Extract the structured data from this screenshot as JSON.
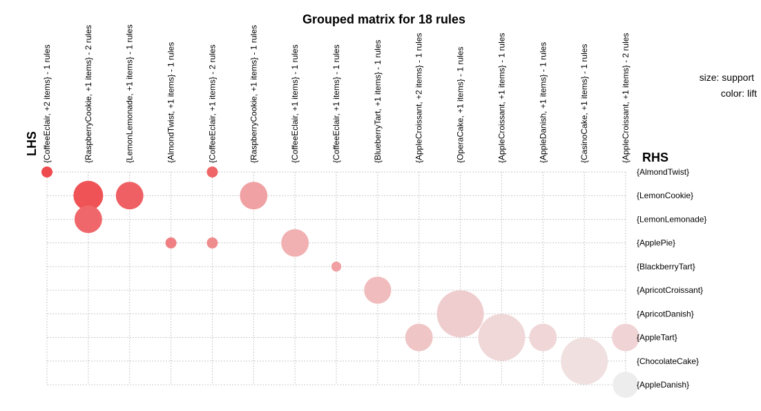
{
  "chart_data": {
    "type": "scatter",
    "title": "Grouped matrix for 18 rules",
    "xlabel": "LHS",
    "ylabel": "RHS",
    "legend": {
      "size": "size: support",
      "color": "color: lift",
      "placement": "top-right"
    },
    "lhs": [
      "{CoffeeEclair, +2 items} - 1 rules",
      "{RaspberryCookie, +1 items} - 2 rules",
      "{LemonLemonade, +1 items} - 1 rules",
      "{AlmondTwist, +1 items} - 1 rules",
      "{CoffeeEclair, +1 items} - 2 rules",
      "{RaspberryCookie, +1 items} - 1 rules",
      "{CoffeeEclair, +1 items} - 1 rules",
      "{CoffeeEclair, +1 items} - 1 rules",
      "{BlueberryTart, +1 items} - 1 rules",
      "{AppleCroissant, +2 items} - 1 rules",
      "{OperaCake, +1 items} - 1 rules",
      "{AppleCroissant, +1 items} - 1 rules",
      "{AppleDanish, +1 items} - 1 rules",
      "{CasinoCake, +1 items} - 1 rules",
      "{AppleCroissant, +1 items} - 2 rules"
    ],
    "rhs": [
      "{AlmondTwist}",
      "{LemonCookie}",
      "{LemonLemonade}",
      "{ApplePie}",
      "{BlackberryTart}",
      "{ApricotCroissant}",
      "{ApricotDanish}",
      "{AppleTart}",
      "{ChocolateCake}",
      "{AppleDanish}"
    ],
    "points": [
      {
        "lhs": 0,
        "rhs": 0,
        "support": 0.1,
        "lift": 0.98,
        "color": "#ee4b4f"
      },
      {
        "lhs": 4,
        "rhs": 0,
        "support": 0.1,
        "lift": 0.8,
        "color": "#ef6669"
      },
      {
        "lhs": 1,
        "rhs": 1,
        "support": 0.72,
        "lift": 0.95,
        "color": "#ef5356"
      },
      {
        "lhs": 2,
        "rhs": 1,
        "support": 0.62,
        "lift": 0.86,
        "color": "#ef6064"
      },
      {
        "lhs": 5,
        "rhs": 1,
        "support": 0.62,
        "lift": 0.55,
        "color": "#f0a1a3"
      },
      {
        "lhs": 1,
        "rhs": 2,
        "support": 0.62,
        "lift": 0.82,
        "color": "#ef676a"
      },
      {
        "lhs": 3,
        "rhs": 3,
        "support": 0.1,
        "lift": 0.75,
        "color": "#ef7f82"
      },
      {
        "lhs": 4,
        "rhs": 3,
        "support": 0.1,
        "lift": 0.72,
        "color": "#ef8c8e"
      },
      {
        "lhs": 6,
        "rhs": 3,
        "support": 0.62,
        "lift": 0.48,
        "color": "#f1b0b1"
      },
      {
        "lhs": 7,
        "rhs": 4,
        "support": 0.08,
        "lift": 0.6,
        "color": "#f0a0a2"
      },
      {
        "lhs": 8,
        "rhs": 5,
        "support": 0.6,
        "lift": 0.42,
        "color": "#f0bcbd"
      },
      {
        "lhs": 10,
        "rhs": 6,
        "support": 1.8,
        "lift": 0.34,
        "color": "#efcdce"
      },
      {
        "lhs": 9,
        "rhs": 7,
        "support": 0.62,
        "lift": 0.38,
        "color": "#f0c5c6"
      },
      {
        "lhs": 11,
        "rhs": 7,
        "support": 1.8,
        "lift": 0.3,
        "color": "#f0d7d8"
      },
      {
        "lhs": 12,
        "rhs": 7,
        "support": 0.62,
        "lift": 0.3,
        "color": "#f0d6d6"
      },
      {
        "lhs": 14,
        "rhs": 7,
        "support": 0.62,
        "lift": 0.3,
        "color": "#f0d3d4"
      },
      {
        "lhs": 13,
        "rhs": 8,
        "support": 1.8,
        "lift": 0.25,
        "color": "#f0e0e0"
      },
      {
        "lhs": 14,
        "rhs": 9,
        "support": 0.55,
        "lift": 0.2,
        "color": "#eeeded"
      }
    ]
  }
}
